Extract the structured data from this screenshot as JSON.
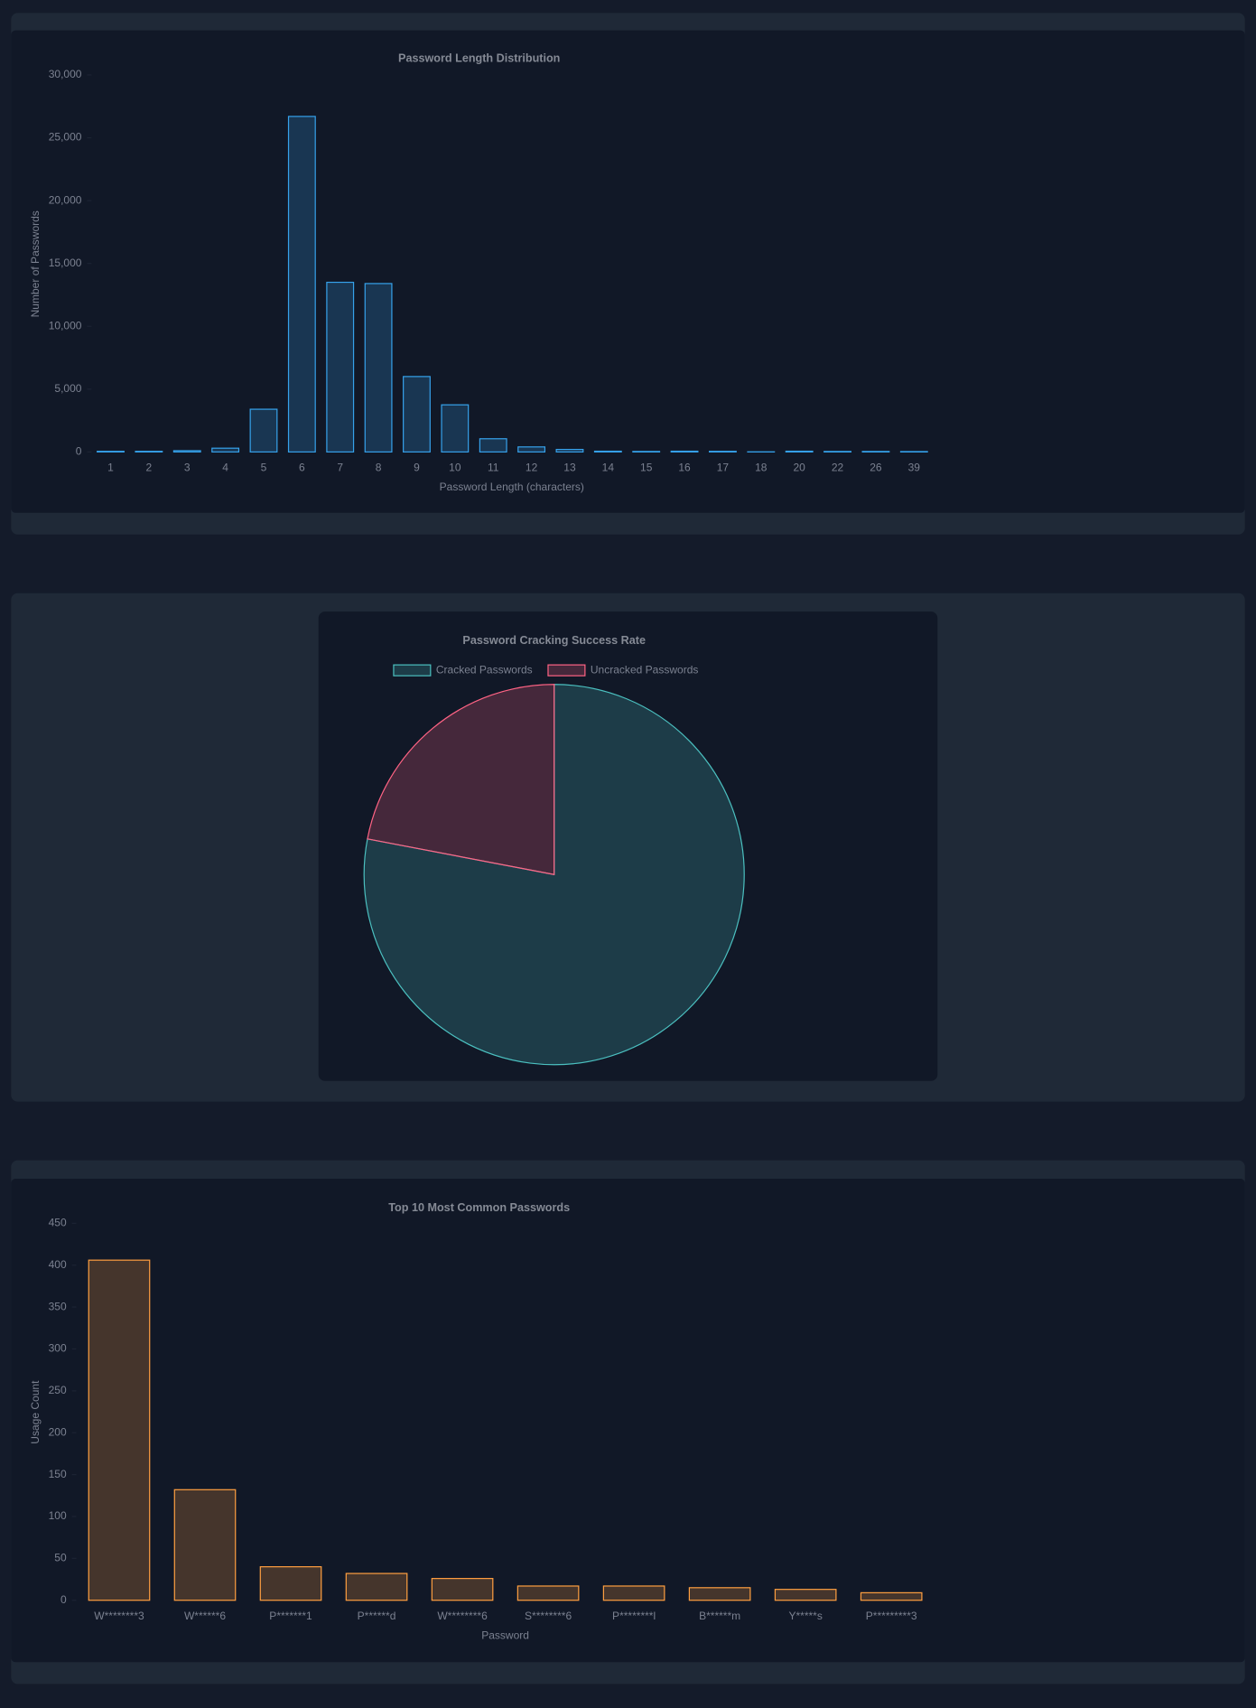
{
  "chart_data": [
    {
      "type": "bar",
      "title": "Password Length Distribution",
      "xlabel": "Password Length (characters)",
      "ylabel": "Number of Passwords",
      "categories": [
        "1",
        "2",
        "3",
        "4",
        "5",
        "6",
        "7",
        "8",
        "9",
        "10",
        "11",
        "12",
        "13",
        "14",
        "15",
        "16",
        "17",
        "18",
        "20",
        "22",
        "26",
        "39"
      ],
      "values": [
        50,
        50,
        100,
        300,
        3400,
        26700,
        13500,
        13400,
        6000,
        3750,
        1050,
        400,
        200,
        60,
        40,
        60,
        50,
        10,
        60,
        40,
        40,
        30
      ],
      "color": "#36a2eb",
      "ylim": [
        0,
        30000
      ],
      "yticks": [
        0,
        {
          "value": 5000,
          "label": "5,000"
        },
        {
          "value": 10000,
          "label": "10,000"
        },
        {
          "value": 15000,
          "label": "15,000"
        },
        {
          "value": 20000,
          "label": "20,000"
        },
        {
          "value": 25000,
          "label": "25,000"
        },
        {
          "value": 30000,
          "label": "30,000"
        }
      ]
    },
    {
      "type": "pie",
      "title": "Password Cracking Success Rate",
      "categories": [
        "Cracked Passwords",
        "Uncracked Passwords"
      ],
      "values": [
        78,
        22
      ],
      "colors": [
        "#4bc0c0",
        "#ff6384"
      ]
    },
    {
      "type": "bar",
      "title": "Top 10 Most Common Passwords",
      "xlabel": "Password",
      "ylabel": "Usage Count",
      "categories": [
        "W********3",
        "W******6",
        "P*******1",
        "P******d",
        "W********6",
        "S********6",
        "P********l",
        "B******m",
        "Y*****s",
        "P*********3"
      ],
      "values": [
        406,
        132,
        40,
        32,
        26,
        17,
        17,
        15,
        13,
        9
      ],
      "color": "#ff9f40",
      "ylim": [
        0,
        450
      ],
      "yticks": [
        0,
        50,
        100,
        150,
        200,
        250,
        300,
        350,
        400,
        450
      ]
    }
  ]
}
